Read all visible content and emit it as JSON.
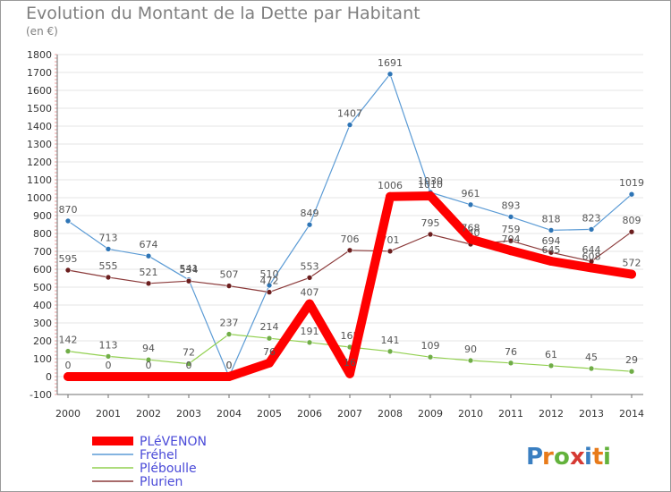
{
  "title": "Evolution du Montant de la Dette par Habitant",
  "subtitle": "(en €)",
  "logo_text": "Proxiti",
  "chart_data": {
    "type": "line",
    "title": "Evolution du Montant de la Dette par Habitant",
    "ylabel": "(en €)",
    "xlabel": "",
    "ylim": [
      -100,
      1800
    ],
    "yticks": [
      -100,
      0,
      100,
      200,
      300,
      400,
      500,
      600,
      700,
      800,
      900,
      1000,
      1100,
      1200,
      1300,
      1400,
      1500,
      1600,
      1700,
      1800
    ],
    "x": [
      "2000",
      "2001",
      "2002",
      "2003",
      "2004",
      "2005",
      "2006",
      "2007",
      "2008",
      "2009",
      "2010",
      "2011",
      "2012",
      "2013",
      "2014"
    ],
    "legend_position": "bottom-left",
    "grid": "horizontal",
    "series": [
      {
        "name": "Fréhel",
        "color": "#5b9bd5",
        "marker": "#2e75b6",
        "values": [
          870,
          713,
          674,
          541,
          0,
          510,
          849,
          1407,
          1691,
          1030,
          961,
          893,
          818,
          823,
          1019
        ]
      },
      {
        "name": "Pléboulle",
        "color": "#92d050",
        "marker": "#70ad47",
        "values": [
          142,
          113,
          94,
          72,
          237,
          214,
          191,
          165,
          141,
          109,
          90,
          76,
          61,
          45,
          29
        ]
      },
      {
        "name": "Plurien",
        "color": "#8b3a3a",
        "marker": "#6b1e1e",
        "values": [
          595,
          555,
          521,
          534,
          507,
          472,
          553,
          706,
          701,
          795,
          740,
          759,
          694,
          644,
          809
        ]
      },
      {
        "name": "PLéVENON",
        "color": "#ff0000",
        "marker": "#ff0000",
        "values": [
          0,
          0,
          0,
          0,
          0,
          76,
          407,
          16,
          1006,
          1010,
          768,
          704,
          645,
          608,
          572
        ]
      }
    ]
  }
}
